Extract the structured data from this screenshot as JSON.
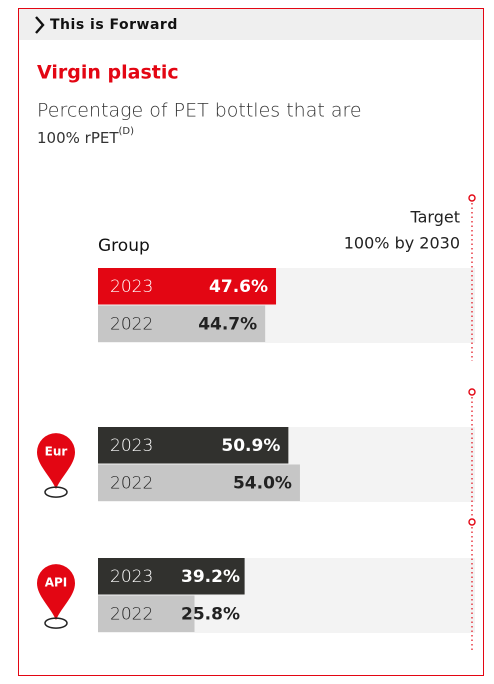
{
  "header": {
    "title": "This is Forward"
  },
  "title": "Virgin plastic",
  "subtitle": [
    "Percentage of PET bottles that are",
    "100% rPET"
  ],
  "subtitle_sup": "(D)",
  "target": {
    "label": "Target",
    "sublabel": "100% by 2030"
  },
  "chart_data": [
    {
      "type": "bar",
      "name": "Group",
      "categories": [
        "2023",
        "2022"
      ],
      "values": [
        47.6,
        44.7
      ],
      "value_labels": [
        "47.6%",
        "44.7%"
      ],
      "colors": [
        "#e30613",
        "#c6c6c6"
      ],
      "xlim": [
        0,
        100
      ]
    },
    {
      "type": "bar",
      "name": "Eur",
      "categories": [
        "2023",
        "2022"
      ],
      "values": [
        50.9,
        54.0
      ],
      "value_labels": [
        "50.9%",
        "54.0%"
      ],
      "colors": [
        "#31312e",
        "#c6c6c6"
      ],
      "xlim": [
        0,
        100
      ]
    },
    {
      "type": "bar",
      "name": "API",
      "categories": [
        "2023",
        "2022"
      ],
      "values": [
        39.2,
        25.8
      ],
      "value_labels": [
        "39.2%",
        "25.8%"
      ],
      "colors": [
        "#31312e",
        "#c6c6c6"
      ],
      "xlim": [
        0,
        100
      ]
    }
  ]
}
